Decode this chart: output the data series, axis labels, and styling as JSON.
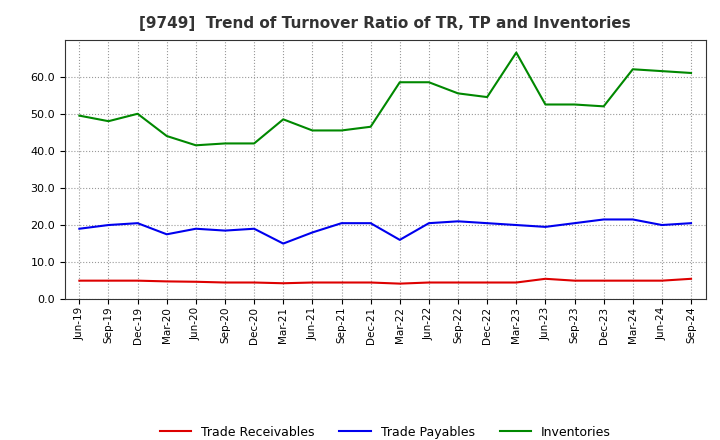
{
  "title": "[9749]  Trend of Turnover Ratio of TR, TP and Inventories",
  "labels": [
    "Jun-19",
    "Sep-19",
    "Dec-19",
    "Mar-20",
    "Jun-20",
    "Sep-20",
    "Dec-20",
    "Mar-21",
    "Jun-21",
    "Sep-21",
    "Dec-21",
    "Mar-22",
    "Jun-22",
    "Sep-22",
    "Dec-22",
    "Mar-23",
    "Jun-23",
    "Sep-23",
    "Dec-23",
    "Mar-24",
    "Jun-24",
    "Sep-24"
  ],
  "trade_receivables": [
    5.0,
    5.0,
    5.0,
    4.8,
    4.7,
    4.5,
    4.5,
    4.3,
    4.5,
    4.5,
    4.5,
    4.2,
    4.5,
    4.5,
    4.5,
    4.5,
    5.5,
    5.0,
    5.0,
    5.0,
    5.0,
    5.5
  ],
  "trade_payables": [
    19.0,
    20.0,
    20.5,
    17.5,
    19.0,
    18.5,
    19.0,
    15.0,
    18.0,
    20.5,
    20.5,
    16.0,
    20.5,
    21.0,
    20.5,
    20.0,
    19.5,
    20.5,
    21.5,
    21.5,
    20.0,
    20.5
  ],
  "inventories": [
    49.5,
    48.0,
    50.0,
    44.0,
    41.5,
    42.0,
    42.0,
    48.5,
    45.5,
    45.5,
    46.5,
    58.5,
    58.5,
    55.5,
    54.5,
    66.5,
    52.5,
    52.5,
    52.0,
    62.0,
    61.5,
    61.0
  ],
  "tr_color": "#dd0000",
  "tp_color": "#0000ee",
  "inv_color": "#008800",
  "ylim": [
    0.0,
    70.0
  ],
  "yticks": [
    0.0,
    10.0,
    20.0,
    30.0,
    40.0,
    50.0,
    60.0
  ],
  "legend_labels": [
    "Trade Receivables",
    "Trade Payables",
    "Inventories"
  ],
  "background_color": "#ffffff",
  "grid_color": "#999999"
}
